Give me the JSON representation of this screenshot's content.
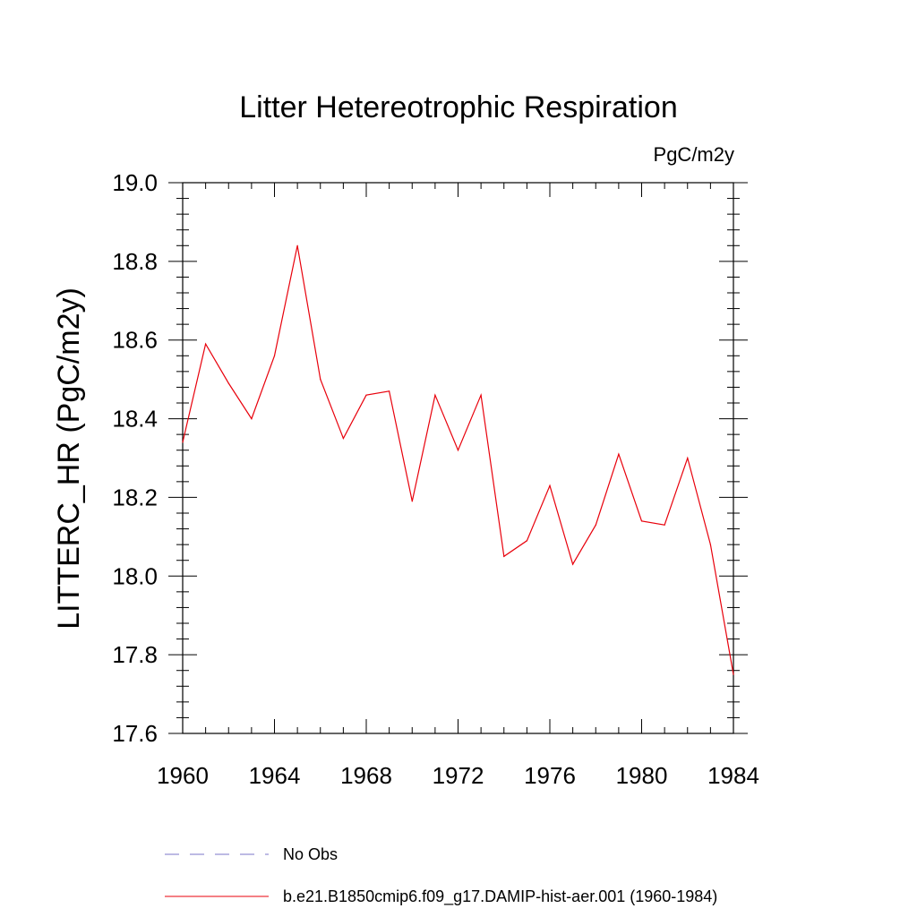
{
  "chart_data": {
    "type": "line",
    "title": "Litter Hetereotrophic Respiration",
    "units": "PgC/m2y",
    "ylabel": "LITTERC_HR  (PgC/m2y)",
    "xlabel": "",
    "xlim": [
      1960,
      1984
    ],
    "ylim": [
      17.6,
      19.0
    ],
    "xticks": [
      1960,
      1964,
      1968,
      1972,
      1976,
      1980,
      1984
    ],
    "xtick_labels": [
      "1960",
      "1964",
      "1968",
      "1972",
      "1976",
      "1980",
      "1984"
    ],
    "yticks": [
      17.6,
      17.8,
      18.0,
      18.2,
      18.4,
      18.6,
      18.8,
      19.0
    ],
    "ytick_labels": [
      "17.6",
      "17.8",
      "18.0",
      "18.2",
      "18.4",
      "18.6",
      "18.8",
      "19.0"
    ],
    "grid": false,
    "series": [
      {
        "name": "b.e21.B1850cmip6.f09_g17.DAMIP-hist-aer.001 (1960-1984)",
        "color": "#e8000b",
        "style": "solid",
        "x": [
          1960,
          1961,
          1962,
          1963,
          1964,
          1965,
          1966,
          1967,
          1968,
          1969,
          1970,
          1971,
          1972,
          1973,
          1974,
          1975,
          1976,
          1977,
          1978,
          1979,
          1980,
          1981,
          1982,
          1983,
          1984
        ],
        "y": [
          18.34,
          18.59,
          18.49,
          18.4,
          18.56,
          18.84,
          18.5,
          18.35,
          18.46,
          18.47,
          18.19,
          18.46,
          18.32,
          18.46,
          18.05,
          18.09,
          18.23,
          18.03,
          18.13,
          18.31,
          18.14,
          18.13,
          18.3,
          18.08,
          17.75
        ]
      }
    ],
    "legend": {
      "placement": "bottom",
      "entries": [
        {
          "label": "No Obs",
          "color": "#7b76c8",
          "style": "dashed"
        },
        {
          "label": "b.e21.B1850cmip6.f09_g17.DAMIP-hist-aer.001 (1960-1984)",
          "color": "#e8000b",
          "style": "solid"
        }
      ]
    }
  }
}
